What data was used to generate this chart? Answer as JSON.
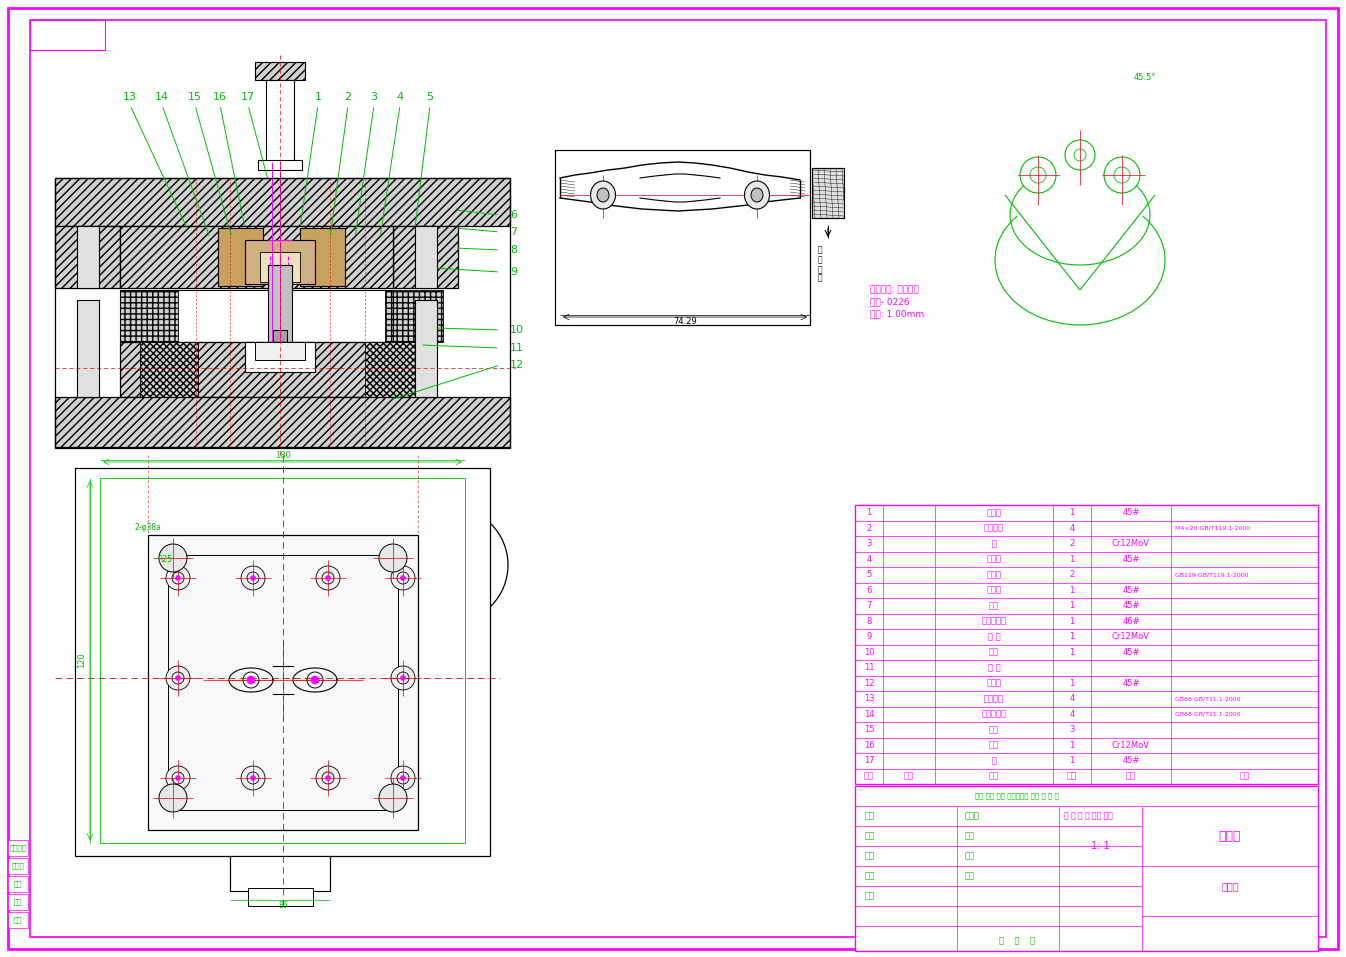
{
  "bg_color": "#ffffff",
  "magenta": "#ff00ff",
  "green": "#00bb00",
  "black": "#000000",
  "red": "#dd0000",
  "gray_hatch": "#d0d0d0",
  "parts": [
    {
      "num": "17",
      "name": "柄",
      "qty": "1",
      "mat": "45#",
      "note": ""
    },
    {
      "num": "16",
      "name": "凸模",
      "qty": "1",
      "mat": "Cr12MoV",
      "note": ""
    },
    {
      "num": "15",
      "name": "销钉",
      "qty": "3",
      "mat": "",
      "note": ""
    },
    {
      "num": "14",
      "name": "内六角螺钉",
      "qty": "4",
      "mat": "",
      "note": "GB68 GB/T11.1-2000"
    },
    {
      "num": "13",
      "name": "卸料螺钉",
      "qty": "4",
      "mat": "",
      "note": "GB68 GB/T11.1-2000"
    },
    {
      "num": "12",
      "name": "下模板",
      "qty": "1",
      "mat": "45#",
      "note": ""
    },
    {
      "num": "11",
      "name": "卸 料",
      "qty": "",
      "mat": "",
      "note": ""
    },
    {
      "num": "10",
      "name": "销钉",
      "qty": "1",
      "mat": "45#",
      "note": ""
    },
    {
      "num": "9",
      "name": "固 套",
      "qty": "1",
      "mat": "Cr12MoV",
      "note": ""
    },
    {
      "num": "8",
      "name": "冲头固定套",
      "qty": "1",
      "mat": "46#",
      "note": ""
    },
    {
      "num": "7",
      "name": "小杆",
      "qty": "1",
      "mat": "45#",
      "note": ""
    },
    {
      "num": "6",
      "name": "上模板",
      "qty": "1",
      "mat": "45#",
      "note": ""
    },
    {
      "num": "5",
      "name": "固柱销",
      "qty": "2",
      "mat": "",
      "note": "GB119 GB/T119.1-2000"
    },
    {
      "num": "4",
      "name": "打料板",
      "qty": "1",
      "mat": "45#",
      "note": ""
    },
    {
      "num": "3",
      "name": "销",
      "qty": "2",
      "mat": "Cr12MoV",
      "note": ""
    },
    {
      "num": "2",
      "name": "内六螺丝",
      "qty": "4",
      "mat": "",
      "note": "M4×20 GB/T119.1-2000"
    },
    {
      "num": "1",
      "name": "打料杆",
      "qty": "1",
      "mat": "45#",
      "note": ""
    }
  ],
  "left_col": [
    "维修万年",
    "标准化",
    "审核",
    "设计",
    "工艺"
  ],
  "title_name": "齿轮锁",
  "scale": "1: 1"
}
